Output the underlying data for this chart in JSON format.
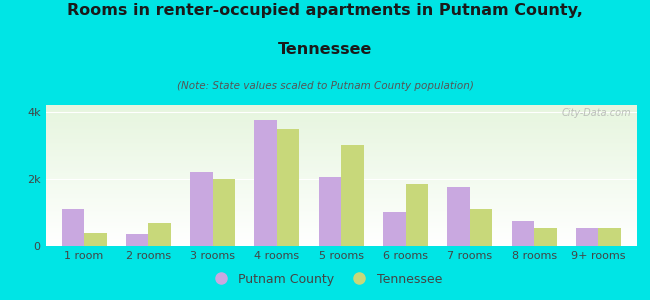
{
  "categories": [
    "1 room",
    "2 rooms",
    "3 rooms",
    "4 rooms",
    "5 rooms",
    "6 rooms",
    "7 rooms",
    "8 rooms",
    "9+ rooms"
  ],
  "putnam_values": [
    1100,
    350,
    2200,
    3750,
    2050,
    1000,
    1750,
    750,
    550
  ],
  "tennessee_values": [
    400,
    700,
    2000,
    3500,
    3000,
    1850,
    1100,
    550,
    550
  ],
  "putnam_color": "#c9a8e0",
  "tennessee_color": "#c8d87a",
  "title_line1": "Rooms in renter-occupied apartments in Putnam County,",
  "title_line2": "Tennessee",
  "subtitle": "(Note: State values scaled to Putnam County population)",
  "legend_putnam": "Putnam County",
  "legend_tennessee": "Tennessee",
  "bg_outer": "#00e5e5",
  "ylim": [
    0,
    4200
  ],
  "yticks": [
    0,
    2000,
    4000
  ],
  "ytick_labels": [
    "0",
    "2k",
    "4k"
  ],
  "watermark": "City-Data.com",
  "bar_width": 0.35,
  "title_fontsize": 11.5,
  "subtitle_fontsize": 7.5,
  "axis_fontsize": 8
}
